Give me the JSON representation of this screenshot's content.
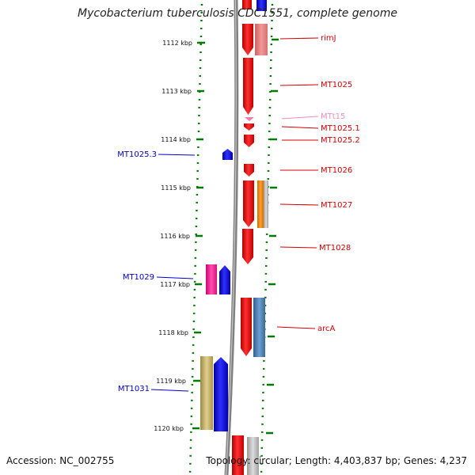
{
  "title": "Mycobacterium tuberculosis CDC1551, complete genome",
  "footer": {
    "accession": "Accession: NC_002755",
    "summary": "Topology: circular; Length: 4,403,837 bp; Genes: 4,237"
  },
  "ticks": [
    "1112 kbp",
    "1113 kbp",
    "1114 kbp",
    "1115 kbp",
    "1116 kbp",
    "1117 kbp",
    "1118 kbp",
    "1119 kbp",
    "1120 kbp"
  ],
  "right_labels": [
    {
      "id": "rimJ",
      "text": "rimJ",
      "color": "#d40000"
    },
    {
      "id": "mt1025",
      "text": "MT1025",
      "color": "#d40000"
    },
    {
      "id": "mtt15",
      "text": "MTt15",
      "color": "#f08fb8"
    },
    {
      "id": "mt1025-1",
      "text": "MT1025.1",
      "color": "#d40000"
    },
    {
      "id": "mt1025-2",
      "text": "MT1025.2",
      "color": "#d40000"
    },
    {
      "id": "mt1026",
      "text": "MT1026",
      "color": "#d40000"
    },
    {
      "id": "mt1027",
      "text": "MT1027",
      "color": "#d40000"
    },
    {
      "id": "mt1028",
      "text": "MT1028",
      "color": "#d40000"
    },
    {
      "id": "arca",
      "text": "arcA",
      "color": "#d40000"
    }
  ],
  "left_labels": [
    {
      "id": "mt1025-3",
      "text": "MT1025.3",
      "color": "#0000c8"
    },
    {
      "id": "mt1029",
      "text": "MT1029",
      "color": "#0000c8"
    },
    {
      "id": "mt1031",
      "text": "MT1031",
      "color": "#0000c8"
    }
  ],
  "colors": {
    "forward_cds": "#ff0000",
    "reverse_cds": "#0000ff",
    "trna": "#f27aa6",
    "orange_feature": "#ff8c00",
    "steel_feature": "#4a7fb5",
    "pink_feature": "#ff1493",
    "olive_feature": "#b8a050",
    "backbone": "#808080",
    "tick": "#007a00"
  }
}
